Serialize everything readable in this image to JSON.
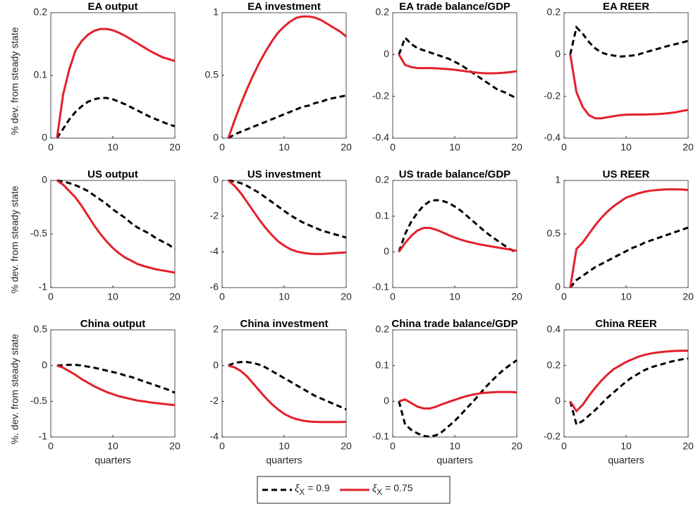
{
  "chart_data": [
    {
      "type": "line",
      "title": "EA output",
      "ylabel": "% dev. from steady state",
      "xlim": [
        0,
        20
      ],
      "xticks": [
        0,
        10,
        20
      ],
      "ylim": [
        0,
        0.2
      ],
      "yticks": [
        0,
        0.1,
        0.2
      ],
      "x": [
        1,
        2,
        3,
        4,
        5,
        6,
        7,
        8,
        9,
        10,
        11,
        12,
        13,
        14,
        15,
        16,
        17,
        18,
        19,
        20
      ],
      "series": [
        {
          "name": "ξX = 0.9",
          "color": "#000000",
          "linestyle": "dashed",
          "values": [
            0,
            0.015,
            0.03,
            0.042,
            0.051,
            0.058,
            0.062,
            0.064,
            0.064,
            0.062,
            0.058,
            0.054,
            0.049,
            0.044,
            0.039,
            0.034,
            0.03,
            0.026,
            0.022,
            0.019
          ]
        },
        {
          "name": "ξX = 0.75",
          "color": "#e3202b",
          "linestyle": "solid",
          "values": [
            0,
            0.07,
            0.11,
            0.14,
            0.155,
            0.165,
            0.171,
            0.174,
            0.174,
            0.172,
            0.168,
            0.163,
            0.157,
            0.151,
            0.145,
            0.139,
            0.134,
            0.129,
            0.126,
            0.123
          ]
        }
      ]
    },
    {
      "type": "line",
      "title": "EA investment",
      "xlim": [
        0,
        20
      ],
      "xticks": [
        0,
        10,
        20
      ],
      "ylim": [
        0,
        1
      ],
      "yticks": [
        0,
        0.5,
        1
      ],
      "x": [
        1,
        2,
        3,
        4,
        5,
        6,
        7,
        8,
        9,
        10,
        11,
        12,
        13,
        14,
        15,
        16,
        17,
        18,
        19,
        20
      ],
      "series": [
        {
          "name": "ξX = 0.9",
          "color": "#000000",
          "linestyle": "dashed",
          "values": [
            0,
            0.03,
            0.05,
            0.07,
            0.09,
            0.11,
            0.13,
            0.15,
            0.17,
            0.19,
            0.21,
            0.23,
            0.25,
            0.26,
            0.28,
            0.29,
            0.31,
            0.32,
            0.33,
            0.34
          ]
        },
        {
          "name": "ξX = 0.75",
          "color": "#e3202b",
          "linestyle": "solid",
          "values": [
            0,
            0.14,
            0.27,
            0.39,
            0.5,
            0.6,
            0.69,
            0.77,
            0.84,
            0.89,
            0.93,
            0.96,
            0.97,
            0.97,
            0.96,
            0.94,
            0.91,
            0.88,
            0.85,
            0.81
          ]
        }
      ]
    },
    {
      "type": "line",
      "title": "EA trade balance/GDP",
      "xlim": [
        0,
        20
      ],
      "xticks": [
        0,
        10,
        20
      ],
      "ylim": [
        -0.4,
        0.2
      ],
      "yticks": [
        -0.4,
        -0.2,
        0,
        0.2
      ],
      "x": [
        1,
        2,
        3,
        4,
        5,
        6,
        7,
        8,
        9,
        10,
        11,
        12,
        13,
        14,
        15,
        16,
        17,
        18,
        19,
        20
      ],
      "series": [
        {
          "name": "ξX = 0.9",
          "color": "#000000",
          "linestyle": "dashed",
          "values": [
            0,
            0.08,
            0.05,
            0.03,
            0.02,
            0.01,
            0,
            -0.01,
            -0.02,
            -0.035,
            -0.05,
            -0.07,
            -0.09,
            -0.11,
            -0.13,
            -0.15,
            -0.17,
            -0.18,
            -0.195,
            -0.21
          ]
        },
        {
          "name": "ξX = 0.75",
          "color": "#e3202b",
          "linestyle": "solid",
          "values": [
            0,
            -0.05,
            -0.06,
            -0.065,
            -0.065,
            -0.065,
            -0.066,
            -0.068,
            -0.07,
            -0.073,
            -0.077,
            -0.081,
            -0.085,
            -0.088,
            -0.09,
            -0.09,
            -0.089,
            -0.087,
            -0.084,
            -0.08
          ]
        }
      ]
    },
    {
      "type": "line",
      "title": "EA REER",
      "xlim": [
        0,
        20
      ],
      "xticks": [
        0,
        10,
        20
      ],
      "ylim": [
        -0.4,
        0.2
      ],
      "yticks": [
        -0.4,
        -0.2,
        0,
        0.2
      ],
      "x": [
        1,
        2,
        3,
        4,
        5,
        6,
        7,
        8,
        9,
        10,
        11,
        12,
        13,
        14,
        15,
        16,
        17,
        18,
        19,
        20
      ],
      "series": [
        {
          "name": "ξX = 0.9",
          "color": "#000000",
          "linestyle": "dashed",
          "values": [
            0,
            0.13,
            0.1,
            0.06,
            0.03,
            0.01,
            0,
            -0.005,
            -0.01,
            -0.008,
            -0.005,
            0,
            0.01,
            0.018,
            0.026,
            0.035,
            0.043,
            0.05,
            0.057,
            0.065
          ]
        },
        {
          "name": "ξX = 0.75",
          "color": "#e3202b",
          "linestyle": "solid",
          "values": [
            0,
            -0.18,
            -0.25,
            -0.29,
            -0.305,
            -0.305,
            -0.3,
            -0.295,
            -0.29,
            -0.288,
            -0.287,
            -0.287,
            -0.287,
            -0.286,
            -0.285,
            -0.283,
            -0.28,
            -0.276,
            -0.27,
            -0.265
          ]
        }
      ]
    },
    {
      "type": "line",
      "title": "US output",
      "ylabel": "% dev. from steady state",
      "xlim": [
        0,
        20
      ],
      "xticks": [
        0,
        10,
        20
      ],
      "ylim": [
        -1,
        0
      ],
      "yticks": [
        -1,
        -0.5,
        0
      ],
      "x": [
        1,
        2,
        3,
        4,
        5,
        6,
        7,
        8,
        9,
        10,
        11,
        12,
        13,
        14,
        15,
        16,
        17,
        18,
        19,
        20
      ],
      "series": [
        {
          "name": "ξX = 0.9",
          "color": "#000000",
          "linestyle": "dashed",
          "values": [
            0,
            -0.01,
            -0.025,
            -0.045,
            -0.07,
            -0.1,
            -0.14,
            -0.18,
            -0.22,
            -0.27,
            -0.31,
            -0.35,
            -0.4,
            -0.44,
            -0.47,
            -0.5,
            -0.54,
            -0.57,
            -0.6,
            -0.64
          ]
        },
        {
          "name": "ξX = 0.75",
          "color": "#e3202b",
          "linestyle": "solid",
          "values": [
            0,
            -0.04,
            -0.1,
            -0.16,
            -0.24,
            -0.33,
            -0.42,
            -0.5,
            -0.57,
            -0.63,
            -0.68,
            -0.72,
            -0.75,
            -0.78,
            -0.8,
            -0.815,
            -0.83,
            -0.84,
            -0.85,
            -0.86
          ]
        }
      ]
    },
    {
      "type": "line",
      "title": "US investment",
      "xlim": [
        0,
        20
      ],
      "xticks": [
        0,
        10,
        20
      ],
      "ylim": [
        -6,
        0
      ],
      "yticks": [
        -6,
        -4,
        -2,
        0
      ],
      "x": [
        1,
        2,
        3,
        4,
        5,
        6,
        7,
        8,
        9,
        10,
        11,
        12,
        13,
        14,
        15,
        16,
        17,
        18,
        19,
        20
      ],
      "series": [
        {
          "name": "ξX = 0.9",
          "color": "#000000",
          "linestyle": "dashed",
          "values": [
            0,
            -0.05,
            -0.15,
            -0.3,
            -0.5,
            -0.7,
            -0.95,
            -1.2,
            -1.45,
            -1.7,
            -1.95,
            -2.15,
            -2.35,
            -2.5,
            -2.65,
            -2.8,
            -2.9,
            -3,
            -3.1,
            -3.2
          ]
        },
        {
          "name": "ξX = 0.75",
          "color": "#e3202b",
          "linestyle": "solid",
          "values": [
            0,
            -0.3,
            -0.7,
            -1.2,
            -1.7,
            -2.2,
            -2.65,
            -3.05,
            -3.4,
            -3.65,
            -3.85,
            -3.98,
            -4.05,
            -4.1,
            -4.12,
            -4.12,
            -4.1,
            -4.07,
            -4.05,
            -4.03
          ]
        }
      ]
    },
    {
      "type": "line",
      "title": "US trade balance/GDP",
      "xlim": [
        0,
        20
      ],
      "xticks": [
        0,
        10,
        20
      ],
      "ylim": [
        -0.1,
        0.2
      ],
      "yticks": [
        -0.1,
        0,
        0.1,
        0.2
      ],
      "x": [
        1,
        2,
        3,
        4,
        5,
        6,
        7,
        8,
        9,
        10,
        11,
        12,
        13,
        14,
        15,
        16,
        17,
        18,
        19,
        20
      ],
      "series": [
        {
          "name": "ξX = 0.9",
          "color": "#000000",
          "linestyle": "dashed",
          "values": [
            0,
            0.05,
            0.085,
            0.11,
            0.13,
            0.142,
            0.145,
            0.143,
            0.137,
            0.127,
            0.115,
            0.1,
            0.085,
            0.07,
            0.055,
            0.042,
            0.03,
            0.018,
            0.007,
            -0.003
          ]
        },
        {
          "name": "ξX = 0.75",
          "color": "#e3202b",
          "linestyle": "solid",
          "values": [
            0,
            0.025,
            0.045,
            0.06,
            0.067,
            0.067,
            0.062,
            0.055,
            0.047,
            0.04,
            0.034,
            0.029,
            0.025,
            0.021,
            0.018,
            0.015,
            0.012,
            0.009,
            0.006,
            0.003
          ]
        }
      ]
    },
    {
      "type": "line",
      "title": "US REER",
      "xlim": [
        0,
        20
      ],
      "xticks": [
        0,
        10,
        20
      ],
      "ylim": [
        0,
        1
      ],
      "yticks": [
        0,
        0.5,
        1
      ],
      "x": [
        1,
        2,
        3,
        4,
        5,
        6,
        7,
        8,
        9,
        10,
        11,
        12,
        13,
        14,
        15,
        16,
        17,
        18,
        19,
        20
      ],
      "series": [
        {
          "name": "ξX = 0.9",
          "color": "#000000",
          "linestyle": "dashed",
          "values": [
            0,
            0.07,
            0.11,
            0.15,
            0.19,
            0.22,
            0.25,
            0.28,
            0.31,
            0.34,
            0.37,
            0.39,
            0.42,
            0.44,
            0.46,
            0.48,
            0.5,
            0.52,
            0.54,
            0.56
          ]
        },
        {
          "name": "ξX = 0.75",
          "color": "#e3202b",
          "linestyle": "solid",
          "values": [
            0,
            0.36,
            0.42,
            0.5,
            0.58,
            0.65,
            0.71,
            0.76,
            0.8,
            0.84,
            0.86,
            0.88,
            0.895,
            0.905,
            0.91,
            0.915,
            0.917,
            0.917,
            0.915,
            0.91
          ]
        }
      ]
    },
    {
      "type": "line",
      "title": "China output",
      "ylabel": "%. dev. from steady state",
      "xlabel": "quarters",
      "xlim": [
        0,
        20
      ],
      "xticks": [
        0,
        10,
        20
      ],
      "ylim": [
        -1,
        0.5
      ],
      "yticks": [
        -1,
        -0.5,
        0,
        0.5
      ],
      "x": [
        1,
        2,
        3,
        4,
        5,
        6,
        7,
        8,
        9,
        10,
        11,
        12,
        13,
        14,
        15,
        16,
        17,
        18,
        19,
        20
      ],
      "series": [
        {
          "name": "ξX = 0.9",
          "color": "#000000",
          "linestyle": "dashed",
          "values": [
            0,
            0.005,
            0.01,
            0.01,
            0,
            -0.015,
            -0.03,
            -0.05,
            -0.07,
            -0.09,
            -0.11,
            -0.14,
            -0.16,
            -0.19,
            -0.22,
            -0.25,
            -0.28,
            -0.31,
            -0.34,
            -0.38
          ]
        },
        {
          "name": "ξX = 0.75",
          "color": "#e3202b",
          "linestyle": "solid",
          "values": [
            0,
            -0.03,
            -0.08,
            -0.13,
            -0.19,
            -0.24,
            -0.29,
            -0.33,
            -0.37,
            -0.4,
            -0.43,
            -0.45,
            -0.47,
            -0.49,
            -0.5,
            -0.515,
            -0.525,
            -0.535,
            -0.545,
            -0.555
          ]
        }
      ]
    },
    {
      "type": "line",
      "title": "China investment",
      "xlabel": "quarters",
      "xlim": [
        0,
        20
      ],
      "xticks": [
        0,
        10,
        20
      ],
      "ylim": [
        -4,
        2
      ],
      "yticks": [
        -4,
        -2,
        0,
        2
      ],
      "x": [
        1,
        2,
        3,
        4,
        5,
        6,
        7,
        8,
        9,
        10,
        11,
        12,
        13,
        14,
        15,
        16,
        17,
        18,
        19,
        20
      ],
      "series": [
        {
          "name": "ξX = 0.9",
          "color": "#000000",
          "linestyle": "dashed",
          "values": [
            0,
            0.15,
            0.2,
            0.2,
            0.15,
            0.05,
            -0.1,
            -0.3,
            -0.5,
            -0.7,
            -0.9,
            -1.1,
            -1.3,
            -1.5,
            -1.7,
            -1.85,
            -2,
            -2.15,
            -2.3,
            -2.45
          ]
        },
        {
          "name": "ξX = 0.75",
          "color": "#e3202b",
          "linestyle": "solid",
          "values": [
            0,
            -0.1,
            -0.3,
            -0.6,
            -1,
            -1.4,
            -1.8,
            -2.15,
            -2.45,
            -2.7,
            -2.88,
            -3,
            -3.08,
            -3.13,
            -3.15,
            -3.16,
            -3.16,
            -3.16,
            -3.16,
            -3.15
          ]
        }
      ]
    },
    {
      "type": "line",
      "title": "China trade balance/GDP",
      "xlabel": "quarters",
      "xlim": [
        0,
        20
      ],
      "xticks": [
        0,
        10,
        20
      ],
      "ylim": [
        -0.1,
        0.2
      ],
      "yticks": [
        -0.1,
        0,
        0.1,
        0.2
      ],
      "x": [
        1,
        2,
        3,
        4,
        5,
        6,
        7,
        8,
        9,
        10,
        11,
        12,
        13,
        14,
        15,
        16,
        17,
        18,
        19,
        20
      ],
      "series": [
        {
          "name": "ξX = 0.9",
          "color": "#000000",
          "linestyle": "dashed",
          "values": [
            0,
            -0.065,
            -0.08,
            -0.09,
            -0.097,
            -0.099,
            -0.095,
            -0.085,
            -0.07,
            -0.055,
            -0.037,
            -0.018,
            0,
            0.02,
            0.04,
            0.058,
            0.075,
            0.09,
            0.103,
            0.115
          ]
        },
        {
          "name": "ξX = 0.75",
          "color": "#e3202b",
          "linestyle": "solid",
          "values": [
            0,
            0.005,
            -0.005,
            -0.015,
            -0.02,
            -0.02,
            -0.015,
            -0.008,
            -0.002,
            0.004,
            0.01,
            0.015,
            0.019,
            0.022,
            0.024,
            0.025,
            0.026,
            0.026,
            0.026,
            0.025
          ]
        }
      ]
    },
    {
      "type": "line",
      "title": "China REER",
      "xlabel": "quarters",
      "xlim": [
        0,
        20
      ],
      "xticks": [
        0,
        10,
        20
      ],
      "ylim": [
        -0.2,
        0.4
      ],
      "yticks": [
        -0.2,
        0,
        0.2,
        0.4
      ],
      "x": [
        1,
        2,
        3,
        4,
        5,
        6,
        7,
        8,
        9,
        10,
        11,
        12,
        13,
        14,
        15,
        16,
        17,
        18,
        19,
        20
      ],
      "series": [
        {
          "name": "ξX = 0.9",
          "color": "#000000",
          "linestyle": "dashed",
          "values": [
            0,
            -0.13,
            -0.11,
            -0.08,
            -0.05,
            -0.015,
            0.02,
            0.05,
            0.08,
            0.11,
            0.135,
            0.155,
            0.175,
            0.19,
            0.2,
            0.21,
            0.22,
            0.228,
            0.235,
            0.24
          ]
        },
        {
          "name": "ξX = 0.75",
          "color": "#e3202b",
          "linestyle": "solid",
          "values": [
            0,
            -0.055,
            -0.02,
            0.03,
            0.075,
            0.115,
            0.15,
            0.18,
            0.2,
            0.22,
            0.235,
            0.25,
            0.26,
            0.268,
            0.273,
            0.277,
            0.28,
            0.282,
            0.283,
            0.283
          ]
        }
      ]
    }
  ]
}
